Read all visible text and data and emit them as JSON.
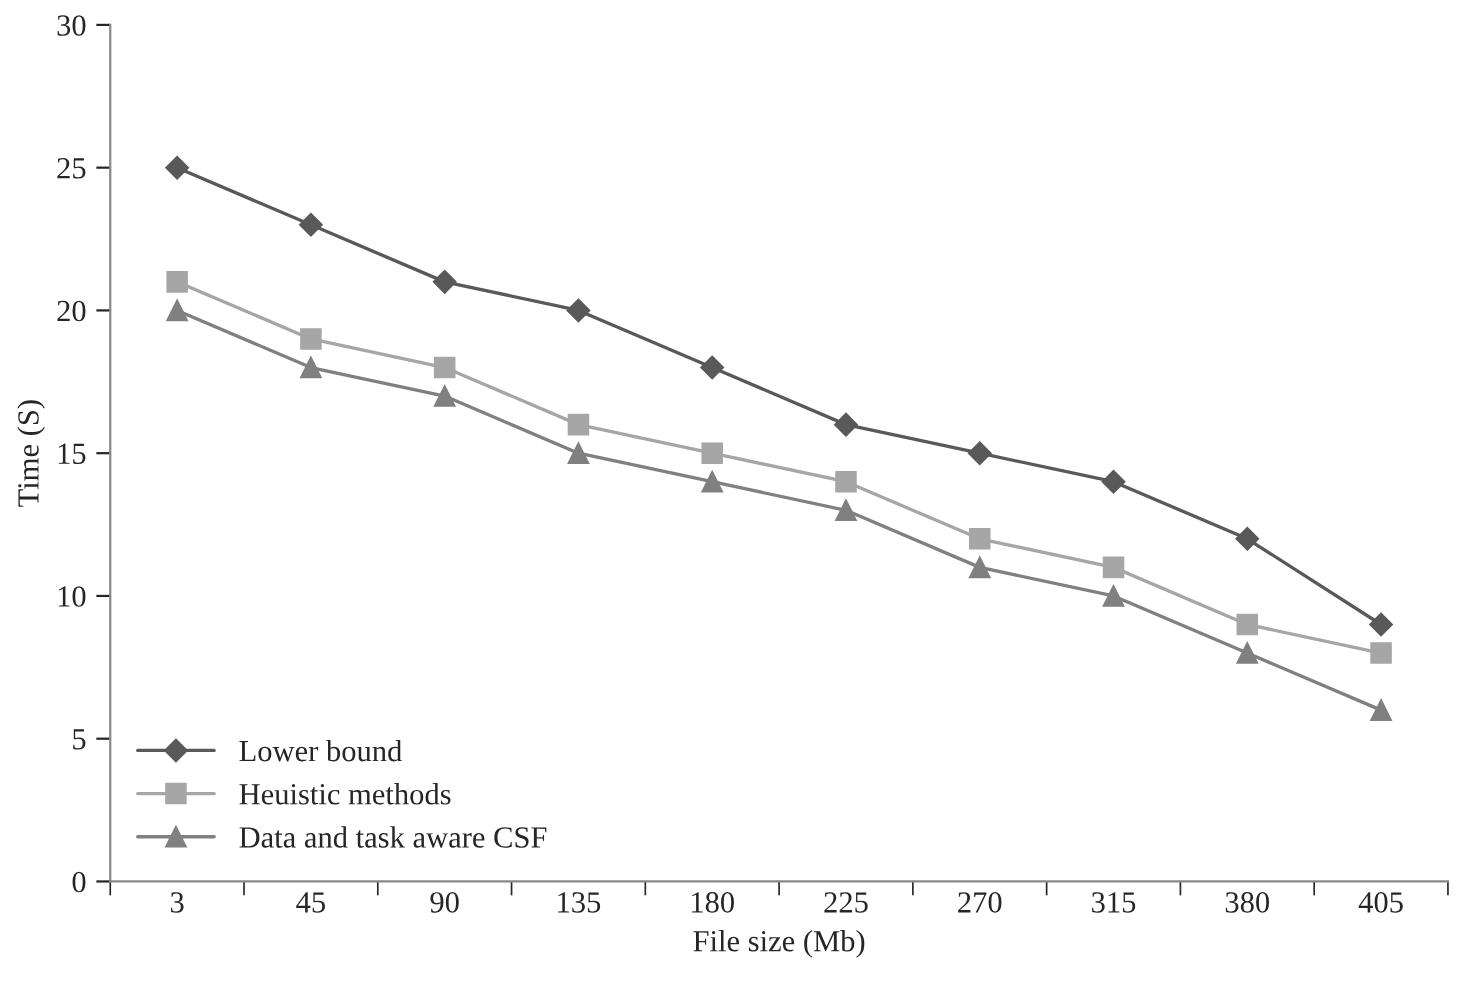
{
  "chart_data": {
    "type": "line",
    "xlabel": "File size (Mb)",
    "ylabel": "Time (S)",
    "categories": [
      "3",
      "45",
      "90",
      "135",
      "180",
      "225",
      "270",
      "315",
      "380",
      "405"
    ],
    "series": [
      {
        "name": "Lower bound",
        "color": "#595959",
        "marker": "diamond",
        "values": [
          25,
          23,
          21,
          20,
          18,
          16,
          15,
          14,
          12,
          9
        ]
      },
      {
        "name": "Heuistic methods",
        "color": "#a6a6a6",
        "marker": "square",
        "values": [
          21,
          19,
          18,
          16,
          15,
          14,
          12,
          11,
          9,
          8
        ]
      },
      {
        "name": "Data and task aware CSF",
        "color": "#808080",
        "marker": "triangle",
        "values": [
          20,
          18,
          17,
          15,
          14,
          13,
          11,
          10,
          8,
          6
        ]
      }
    ],
    "ylim": [
      0,
      30
    ],
    "yticks": [
      0,
      5,
      10,
      15,
      20,
      25,
      30
    ],
    "grid": false,
    "legend": "bottom left",
    "line_style": "solid"
  }
}
